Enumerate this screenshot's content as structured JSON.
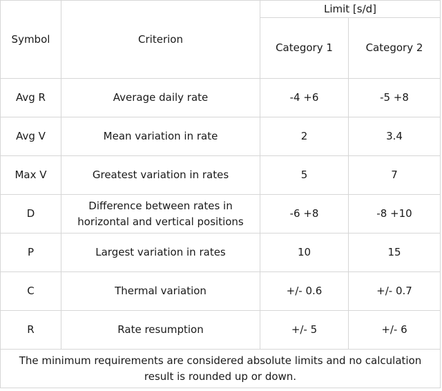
{
  "table": {
    "headers": {
      "symbol": "Symbol",
      "criterion": "Criterion",
      "limit": "Limit [s/d]",
      "category1": "Category 1",
      "category2": "Category 2"
    },
    "rows": [
      {
        "symbol": "Avg R",
        "criterion": "Average daily rate",
        "cat1": "-4 +6",
        "cat2": "-5 +8"
      },
      {
        "symbol": "Avg V",
        "criterion": "Mean variation in rate",
        "cat1": "2",
        "cat2": "3.4"
      },
      {
        "symbol": "Max V",
        "criterion": "Greatest variation in rates",
        "cat1": "5",
        "cat2": "7"
      },
      {
        "symbol": "D",
        "criterion": "Difference between rates in horizontal and vertical positions",
        "cat1": "-6 +8",
        "cat2": "-8 +10"
      },
      {
        "symbol": "P",
        "criterion": "Largest variation in rates",
        "cat1": "10",
        "cat2": "15"
      },
      {
        "symbol": "C",
        "criterion": "Thermal variation",
        "cat1": "+/- 0.6",
        "cat2": "+/- 0.7"
      },
      {
        "symbol": "R",
        "criterion": "Rate resumption",
        "cat1": "+/- 5",
        "cat2": "+/- 6"
      }
    ],
    "footnote": "The minimum requirements are considered absolute limits and no calculation result is rounded up or down."
  }
}
